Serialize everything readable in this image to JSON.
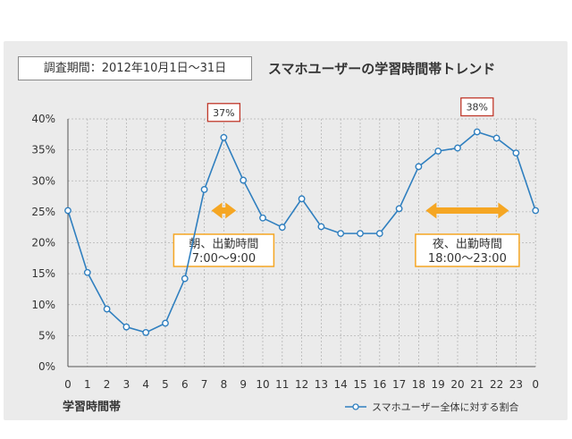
{
  "period_label": "調査期間：2012年10月1日〜31日",
  "chart_data": {
    "type": "line",
    "title": "スマホユーザーの学習時間帯トレンド",
    "xlabel": "学習時間帯",
    "ylabel": "",
    "categories": [
      "0",
      "1",
      "2",
      "3",
      "4",
      "5",
      "6",
      "7",
      "8",
      "9",
      "10",
      "11",
      "12",
      "13",
      "14",
      "15",
      "16",
      "17",
      "18",
      "19",
      "20",
      "21",
      "22",
      "23",
      "0"
    ],
    "series": [
      {
        "name": "スマホユーザー全体に対する割合",
        "color": "#2f7fbf",
        "values": [
          25.2,
          15.2,
          9.3,
          6.4,
          5.5,
          7.0,
          14.2,
          28.6,
          37.0,
          30.1,
          24.0,
          22.5,
          27.1,
          22.6,
          21.5,
          21.5,
          21.5,
          25.5,
          32.3,
          34.8,
          35.3,
          37.9,
          36.9,
          34.5,
          25.2
        ]
      }
    ],
    "ylim": [
      0,
      40
    ],
    "yticks": [
      "0%",
      "5%",
      "10%",
      "15%",
      "20%",
      "25%",
      "30%",
      "35%",
      "40%"
    ],
    "grid": true,
    "legend_position": "bottom-right",
    "peaks": [
      {
        "label": "37%",
        "index": 8
      },
      {
        "label": "38%",
        "index": 21
      }
    ],
    "annotations": [
      {
        "title": "朝、出勤時間",
        "range": "7:00〜9:00",
        "from": 7,
        "to": 9
      },
      {
        "title": "夜、出勤時間",
        "range": "18:00〜23:00",
        "from": 18,
        "to": 23
      }
    ],
    "accent_color": "#f5a623",
    "peak_box_color": "#c0392b"
  }
}
